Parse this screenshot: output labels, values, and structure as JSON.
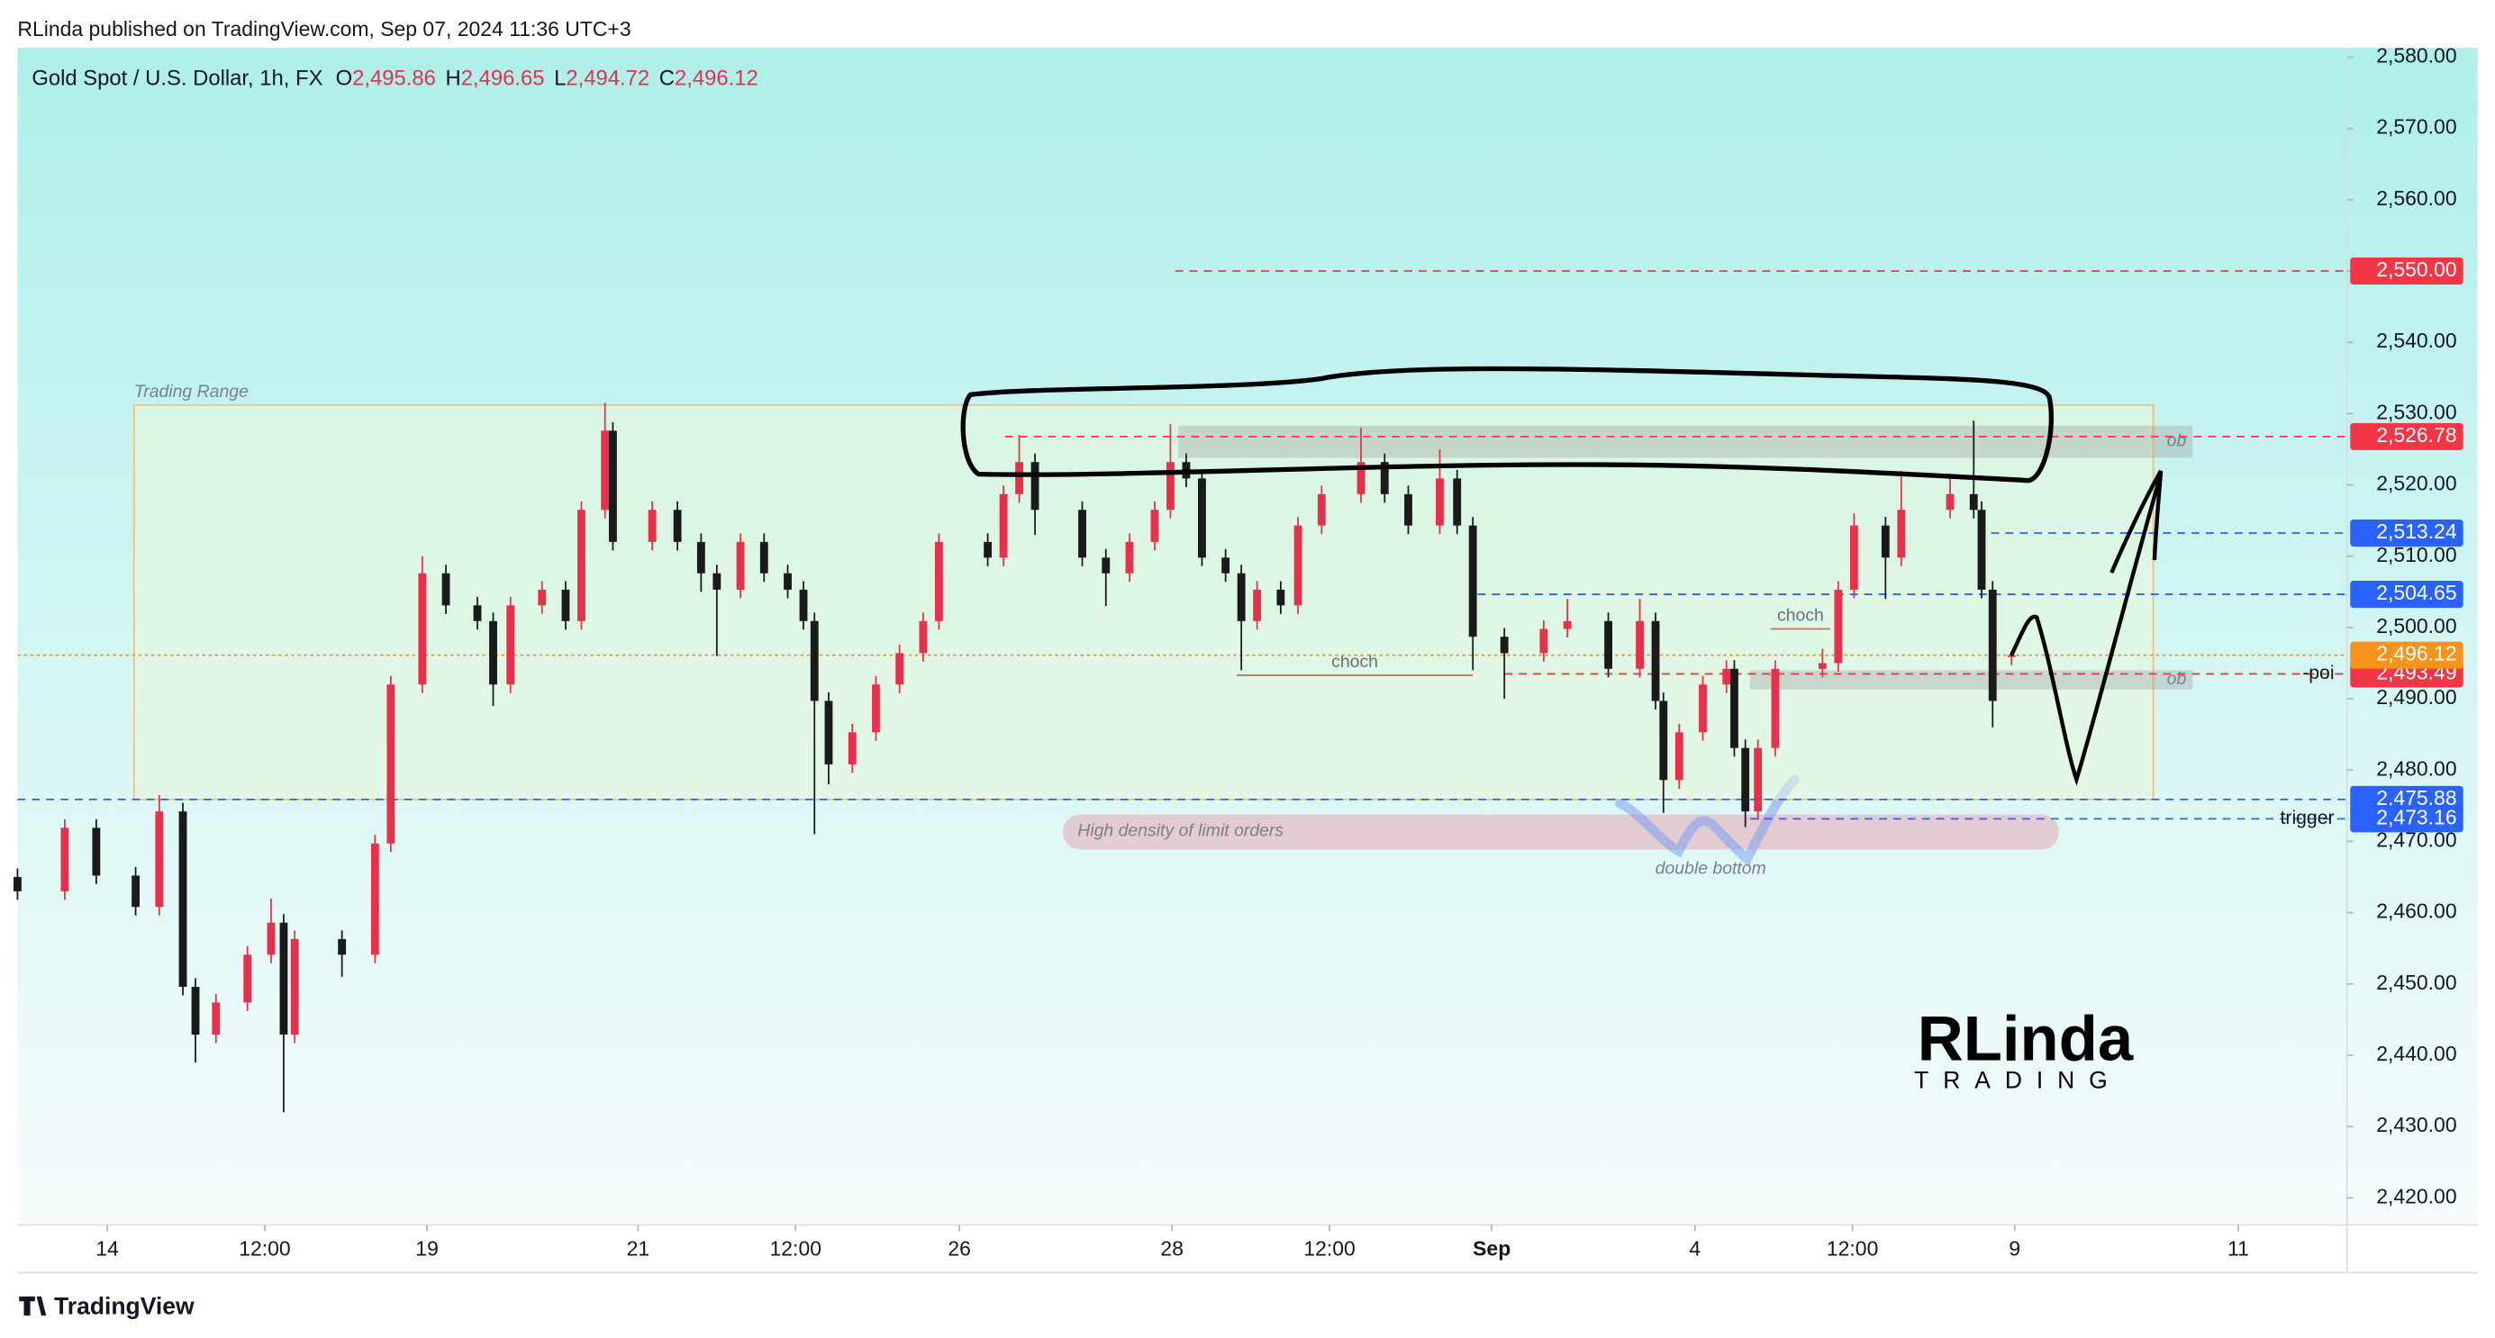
{
  "header": {
    "published": "RLinda published on TradingView.com, Sep 07, 2024 11:36 UTC+3"
  },
  "footer": {
    "brand": "TradingView"
  },
  "logo": {
    "name": "RLinda",
    "tagline": "TRADING"
  },
  "chart_data": {
    "type": "candlestick",
    "title": "Gold Spot / U.S. Dollar, 1h, FX",
    "ohlc": [
      {
        "key": "O",
        "value": 2495.86,
        "label": "2,495.86"
      },
      {
        "key": "H",
        "value": 2496.65,
        "label": "2,496.65"
      },
      {
        "key": "L",
        "value": 2494.72,
        "label": "2,494.72"
      },
      {
        "key": "C",
        "value": 2496.12,
        "label": "2,496.12"
      }
    ],
    "up_color": "#e8304a",
    "down_color": "#1a1a1a",
    "x": [
      -0.57,
      -0.27,
      -0.07,
      0.18,
      0.33,
      0.48,
      0.56,
      0.69,
      0.89,
      1.04,
      1.12,
      1.19,
      1.49,
      1.7,
      1.8,
      2.0,
      2.15,
      2.35,
      2.45,
      2.56,
      2.76,
      2.91,
      3.01,
      3.16,
      3.21,
      3.46,
      3.62,
      3.77,
      3.87,
      4.02,
      4.17,
      4.32,
      4.42,
      4.49,
      4.58,
      4.73,
      4.88,
      5.03,
      5.18,
      5.28,
      5.59,
      5.69,
      5.79,
      5.89,
      6.19,
      6.34,
      6.49,
      6.65,
      6.75,
      6.85,
      6.95,
      7.1,
      7.2,
      7.3,
      7.45,
      7.56,
      7.71,
      7.96,
      8.11,
      8.26,
      8.46,
      8.57,
      8.67,
      8.87,
      9.12,
      9.27,
      9.53,
      9.73,
      9.83,
      9.88,
      9.98,
      10.13,
      10.28,
      10.33,
      10.4,
      10.48,
      10.59,
      10.89,
      10.99,
      11.09,
      11.29,
      11.39,
      11.7,
      11.85,
      11.9,
      11.97,
      12.09
    ],
    "open": [
      2465.0,
      2463.0,
      2471.9,
      2465.2,
      2460.8,
      2474.2,
      2449.6,
      2442.9,
      2447.4,
      2454.1,
      2458.6,
      2442.9,
      2456.3,
      2454.1,
      2469.7,
      2492.0,
      2507.6,
      2503.1,
      2500.9,
      2492.0,
      2503.1,
      2505.3,
      2500.9,
      2516.5,
      2527.6,
      2512.0,
      2516.5,
      2512.0,
      2507.6,
      2505.3,
      2512.0,
      2507.6,
      2505.3,
      2500.9,
      2489.7,
      2480.8,
      2485.3,
      2492.0,
      2496.4,
      2500.9,
      2512.0,
      2509.8,
      2518.7,
      2523.2,
      2516.5,
      2509.8,
      2507.6,
      2512.0,
      2516.5,
      2523.2,
      2520.9,
      2509.8,
      2507.6,
      2500.9,
      2505.3,
      2503.1,
      2514.3,
      2518.7,
      2523.2,
      2518.7,
      2514.3,
      2520.9,
      2514.3,
      2498.7,
      2496.4,
      2499.8,
      2500.9,
      2494.2,
      2500.9,
      2489.7,
      2478.6,
      2485.3,
      2492.0,
      2494.2,
      2483.1,
      2474.2,
      2483.1,
      2494.2,
      2495.0,
      2505.3,
      2514.3,
      2509.8,
      2516.5,
      2518.7,
      2516.5,
      2505.3,
      2495.86
    ],
    "high": [
      2466.2,
      2473.1,
      2473.1,
      2466.4,
      2476.5,
      2475.4,
      2450.8,
      2448.6,
      2455.3,
      2462.0,
      2459.8,
      2457.5,
      2457.5,
      2470.9,
      2493.2,
      2510.0,
      2508.8,
      2504.3,
      2502.1,
      2504.3,
      2506.5,
      2506.5,
      2517.7,
      2531.5,
      2528.8,
      2517.7,
      2517.7,
      2513.2,
      2508.8,
      2513.2,
      2513.2,
      2508.8,
      2506.5,
      2502.1,
      2490.9,
      2486.5,
      2493.2,
      2497.6,
      2502.1,
      2513.2,
      2513.2,
      2519.9,
      2527.0,
      2524.4,
      2517.7,
      2511.0,
      2513.2,
      2517.7,
      2528.5,
      2524.4,
      2522.1,
      2511.0,
      2508.8,
      2506.5,
      2506.5,
      2515.5,
      2519.9,
      2528.0,
      2524.4,
      2519.9,
      2525.0,
      2522.1,
      2515.5,
      2499.9,
      2501.0,
      2504.0,
      2502.1,
      2504.0,
      2502.1,
      2490.9,
      2486.5,
      2493.2,
      2495.4,
      2495.4,
      2484.3,
      2484.3,
      2495.4,
      2497.0,
      2506.5,
      2516.0,
      2515.5,
      2522.0,
      2521.0,
      2529.0,
      2517.7,
      2506.5,
      2496.65
    ],
    "low": [
      2461.8,
      2461.8,
      2464.0,
      2459.6,
      2459.6,
      2448.4,
      2439.0,
      2441.7,
      2446.2,
      2452.9,
      2432.0,
      2441.7,
      2451.0,
      2452.9,
      2468.5,
      2490.8,
      2501.9,
      2499.7,
      2489.0,
      2490.8,
      2501.9,
      2499.7,
      2499.7,
      2515.3,
      2510.8,
      2510.8,
      2510.8,
      2505.0,
      2496.0,
      2504.1,
      2506.4,
      2504.1,
      2499.7,
      2471.0,
      2478.0,
      2479.6,
      2484.1,
      2490.8,
      2495.2,
      2499.7,
      2508.6,
      2508.6,
      2517.5,
      2513.0,
      2508.6,
      2503.0,
      2506.4,
      2510.8,
      2515.3,
      2519.7,
      2508.6,
      2506.4,
      2494.0,
      2499.7,
      2501.9,
      2501.9,
      2513.1,
      2517.5,
      2517.5,
      2513.1,
      2513.1,
      2513.1,
      2494.0,
      2490.0,
      2495.2,
      2498.6,
      2493.0,
      2493.0,
      2488.5,
      2474.0,
      2477.4,
      2484.1,
      2490.8,
      2481.9,
      2472.0,
      2473.0,
      2481.9,
      2493.0,
      2493.8,
      2504.1,
      2504.0,
      2508.6,
      2515.3,
      2515.3,
      2504.1,
      2486.0,
      2494.72
    ],
    "close": [
      2463.0,
      2471.9,
      2465.2,
      2460.8,
      2474.2,
      2449.6,
      2442.9,
      2447.4,
      2454.1,
      2458.6,
      2442.9,
      2456.3,
      2454.1,
      2469.7,
      2492.0,
      2507.6,
      2503.1,
      2500.9,
      2492.0,
      2503.1,
      2505.3,
      2500.9,
      2516.5,
      2527.6,
      2512.0,
      2516.5,
      2512.0,
      2507.6,
      2505.3,
      2512.0,
      2507.6,
      2505.3,
      2500.9,
      2489.7,
      2480.8,
      2485.3,
      2492.0,
      2496.4,
      2500.9,
      2512.0,
      2509.8,
      2518.7,
      2523.2,
      2516.5,
      2509.8,
      2507.6,
      2512.0,
      2516.5,
      2523.2,
      2520.9,
      2509.8,
      2507.6,
      2500.9,
      2505.3,
      2503.1,
      2514.3,
      2518.7,
      2523.2,
      2518.7,
      2514.3,
      2520.9,
      2514.3,
      2498.7,
      2496.4,
      2499.8,
      2500.9,
      2494.2,
      2500.9,
      2489.7,
      2478.6,
      2485.3,
      2492.0,
      2494.2,
      2483.1,
      2474.2,
      2483.1,
      2494.2,
      2495.0,
      2505.3,
      2514.3,
      2509.8,
      2516.5,
      2518.7,
      2516.5,
      2505.3,
      2489.7,
      2496.12
    ],
    "xlim": [
      -0.57,
      14.22
    ],
    "xticks": [
      {
        "value": 0,
        "label": "14"
      },
      {
        "value": 1,
        "label": "12:00"
      },
      {
        "value": 2.03,
        "label": "19"
      },
      {
        "value": 3.37,
        "label": "21"
      },
      {
        "value": 4.37,
        "label": "12:00"
      },
      {
        "value": 5.41,
        "label": "26"
      },
      {
        "value": 6.76,
        "label": "28"
      },
      {
        "value": 7.76,
        "label": "12:00"
      },
      {
        "value": 8.79,
        "label": "Sep",
        "bold": true
      },
      {
        "value": 10.08,
        "label": "4"
      },
      {
        "value": 11.08,
        "label": "12:00"
      },
      {
        "value": 12.11,
        "label": "9"
      },
      {
        "value": 13.53,
        "label": "11"
      }
    ],
    "ylim": [
      2416.2,
      2581.3
    ],
    "yticks": [
      {
        "value": 2580,
        "label": "2,580.00"
      },
      {
        "value": 2570,
        "label": "2,570.00"
      },
      {
        "value": 2560,
        "label": "2,560.00"
      },
      {
        "value": 2550,
        "label": "2,550.00"
      },
      {
        "value": 2540,
        "label": "2,540.00"
      },
      {
        "value": 2530,
        "label": "2,530.00"
      },
      {
        "value": 2520,
        "label": "2,520.00"
      },
      {
        "value": 2510,
        "label": "2,510.00"
      },
      {
        "value": 2500,
        "label": "2,500.00"
      },
      {
        "value": 2490,
        "label": "2,490.00"
      },
      {
        "value": 2480,
        "label": "2,480.00"
      },
      {
        "value": 2470,
        "label": "2,470.00"
      },
      {
        "value": 2460,
        "label": "2,460.00"
      },
      {
        "value": 2450,
        "label": "2,450.00"
      },
      {
        "value": 2440,
        "label": "2,440.00"
      },
      {
        "value": 2430,
        "label": "2,430.00"
      },
      {
        "value": 2420,
        "label": "2,420.00"
      }
    ],
    "range_box": {
      "label": "Trading Range",
      "x": [
        0.17,
        12.99
      ],
      "y": [
        2475.88,
        2531.2
      ]
    },
    "zones": [
      {
        "label": "ob",
        "x": [
          6.8,
          13.24
        ],
        "y": [
          2523.8,
          2528.3
        ]
      },
      {
        "label": "ob",
        "x": [
          10.43,
          13.24
        ],
        "y": [
          2491.3,
          2494.0
        ]
      }
    ],
    "choch": [
      {
        "label": "choch",
        "x": [
          7.17,
          8.67
        ],
        "value": 2493.3
      },
      {
        "label": "choch",
        "x": [
          10.56,
          10.94
        ],
        "value": 2499.8
      }
    ],
    "annotations": [
      {
        "text": "High density of limit orders",
        "x": 6.16,
        "value": 2471.4
      },
      {
        "text": "double bottom",
        "x": 10.18,
        "value": 2466.1
      }
    ],
    "levels": [
      {
        "value": 2550.0,
        "label": "2,550.00",
        "color": "#f23645",
        "style": "dashed",
        "x_start": 6.78
      },
      {
        "value": 2526.78,
        "label": "2,526.78",
        "color": "#f23645",
        "style": "dashed",
        "x_start": 5.7
      },
      {
        "value": 2513.24,
        "label": "2,513.24",
        "color": "#2962ff",
        "style": "dashed",
        "x_start": 11.96
      },
      {
        "value": 2504.65,
        "label": "2,504.65",
        "color": "#2962ff",
        "style": "dashed",
        "x_start": 8.7
      },
      {
        "value": 2493.49,
        "label": "2,493.49",
        "color": "#f23645",
        "style": "dashed",
        "x_start": 8.87,
        "note": "-poi"
      },
      {
        "value": 2496.12,
        "label": "2,496.12",
        "color": "#f7931a",
        "style": "dotted"
      },
      {
        "value": 2475.88,
        "label": "2,475.88",
        "color": "#2962ff",
        "style": "dashed"
      },
      {
        "value": 2473.16,
        "label": "2,473.16",
        "color": "#2962ff",
        "style": "dashed",
        "x_start": 10.43,
        "note": "trigger"
      }
    ]
  }
}
